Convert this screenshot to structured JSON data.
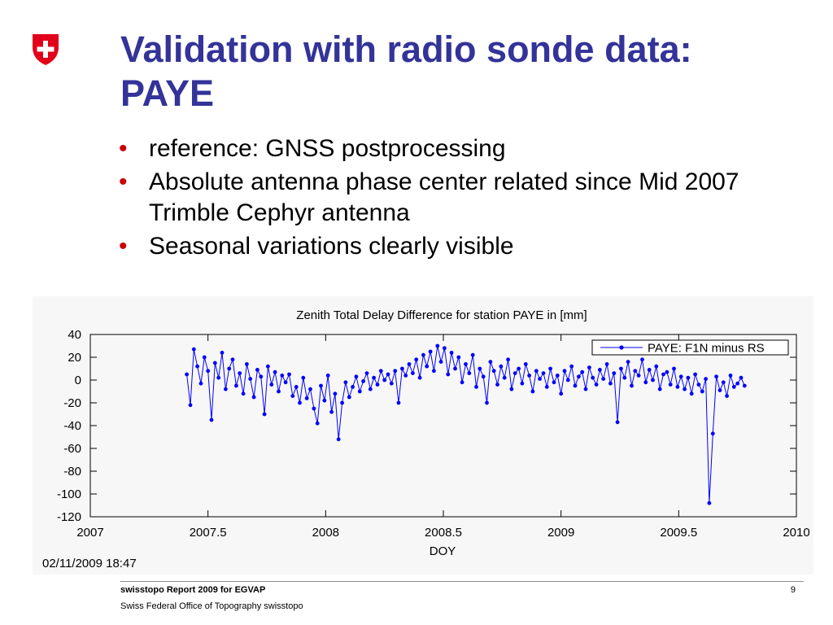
{
  "logo": {
    "icon": "swiss-cross-shield-icon",
    "color": "#e2001a"
  },
  "title": "Validation with radio sonde data: PAYE",
  "title_color": "#333399",
  "bullet_color": "#cc0000",
  "bullets": [
    "reference: GNSS postprocessing",
    "Absolute antenna phase center related since Mid 2007 Trimble Cephyr antenna",
    "Seasonal variations clearly visible"
  ],
  "chart_data": {
    "type": "line",
    "title": "Zenith Total Delay Difference for station PAYE in [mm]",
    "xlabel": "DOY",
    "ylabel": "",
    "xlim": [
      2007,
      2010
    ],
    "ylim": [
      -120,
      40
    ],
    "x_tick_labels": [
      "2007",
      "2007.5",
      "2008",
      "2008.5",
      "2009",
      "2009.5",
      "2010"
    ],
    "y_tick_labels": [
      "40",
      "20",
      "0",
      "-20",
      "-40",
      "-60",
      "-80",
      "-100",
      "-120"
    ],
    "grid": false,
    "legend": "top-right",
    "series": [
      {
        "name": "PAYE: F1N minus RS",
        "color": "#0000ff",
        "marker": "circle",
        "x": [
          2007.41,
          2007.425,
          2007.44,
          2007.455,
          2007.47,
          2007.485,
          2007.5,
          2007.515,
          2007.53,
          2007.545,
          2007.56,
          2007.575,
          2007.59,
          2007.605,
          2007.62,
          2007.635,
          2007.65,
          2007.665,
          2007.68,
          2007.695,
          2007.71,
          2007.725,
          2007.74,
          2007.755,
          2007.77,
          2007.785,
          2007.8,
          2007.815,
          2007.83,
          2007.845,
          2007.86,
          2007.875,
          2007.89,
          2007.905,
          2007.92,
          2007.935,
          2007.95,
          2007.965,
          2007.98,
          2007.995,
          2008.01,
          2008.025,
          2008.04,
          2008.055,
          2008.07,
          2008.085,
          2008.1,
          2008.115,
          2008.13,
          2008.145,
          2008.16,
          2008.175,
          2008.19,
          2008.205,
          2008.22,
          2008.235,
          2008.25,
          2008.265,
          2008.28,
          2008.295,
          2008.31,
          2008.325,
          2008.34,
          2008.355,
          2008.37,
          2008.385,
          2008.4,
          2008.415,
          2008.43,
          2008.445,
          2008.46,
          2008.475,
          2008.49,
          2008.505,
          2008.52,
          2008.535,
          2008.55,
          2008.565,
          2008.58,
          2008.595,
          2008.61,
          2008.625,
          2008.64,
          2008.655,
          2008.67,
          2008.685,
          2008.7,
          2008.715,
          2008.73,
          2008.745,
          2008.76,
          2008.775,
          2008.79,
          2008.805,
          2008.82,
          2008.835,
          2008.85,
          2008.865,
          2008.88,
          2008.895,
          2008.91,
          2008.925,
          2008.94,
          2008.955,
          2008.97,
          2008.985,
          2009,
          2009.015,
          2009.03,
          2009.045,
          2009.06,
          2009.075,
          2009.09,
          2009.105,
          2009.12,
          2009.135,
          2009.15,
          2009.165,
          2009.18,
          2009.195,
          2009.21,
          2009.225,
          2009.24,
          2009.255,
          2009.27,
          2009.285,
          2009.3,
          2009.315,
          2009.33,
          2009.345,
          2009.36,
          2009.375,
          2009.39,
          2009.405,
          2009.42,
          2009.435,
          2009.45,
          2009.465,
          2009.48,
          2009.495,
          2009.51,
          2009.525,
          2009.54,
          2009.555,
          2009.57,
          2009.585,
          2009.6,
          2009.615,
          2009.63,
          2009.645,
          2009.66,
          2009.675,
          2009.69,
          2009.705,
          2009.72,
          2009.735,
          2009.75,
          2009.765,
          2009.78
        ],
        "y": [
          5,
          -22,
          27,
          12,
          -3,
          20,
          8,
          -35,
          15,
          2,
          24,
          -8,
          10,
          18,
          -5,
          6,
          -12,
          14,
          1,
          -15,
          9,
          3,
          -30,
          12,
          -4,
          7,
          -10,
          4,
          -2,
          5,
          -14,
          -6,
          -20,
          2,
          -16,
          -8,
          -25,
          -38,
          -5,
          -18,
          4,
          -28,
          -12,
          -52,
          -20,
          -2,
          -15,
          -6,
          3,
          -10,
          -1,
          6,
          -8,
          2,
          -4,
          8,
          0,
          5,
          -3,
          8,
          -20,
          10,
          4,
          14,
          6,
          18,
          2,
          22,
          12,
          25,
          8,
          30,
          16,
          28,
          5,
          24,
          10,
          20,
          -2,
          14,
          6,
          22,
          -6,
          10,
          3,
          -20,
          16,
          8,
          -4,
          12,
          2,
          18,
          -8,
          6,
          10,
          -3,
          14,
          4,
          -10,
          8,
          1,
          6,
          -6,
          10,
          -2,
          4,
          -12,
          8,
          0,
          12,
          -5,
          3,
          7,
          -8,
          11,
          2,
          -4,
          9,
          1,
          14,
          -3,
          6,
          -37,
          10,
          2,
          16,
          -5,
          8,
          4,
          18,
          -2,
          9,
          0,
          12,
          -8,
          5,
          7,
          -4,
          10,
          -6,
          3,
          -8,
          2,
          -12,
          5,
          -4,
          -10,
          1,
          -108,
          -47,
          3,
          -9,
          -2,
          -14,
          4,
          -6,
          -3,
          2,
          -5
        ]
      }
    ]
  },
  "plot_timestamp": "02/11/2009 18:47",
  "footer": {
    "report": "swisstopo Report 2009 for EGVAP",
    "office": "Swiss Federal Office of Topography swisstopo",
    "page_number": "9"
  }
}
